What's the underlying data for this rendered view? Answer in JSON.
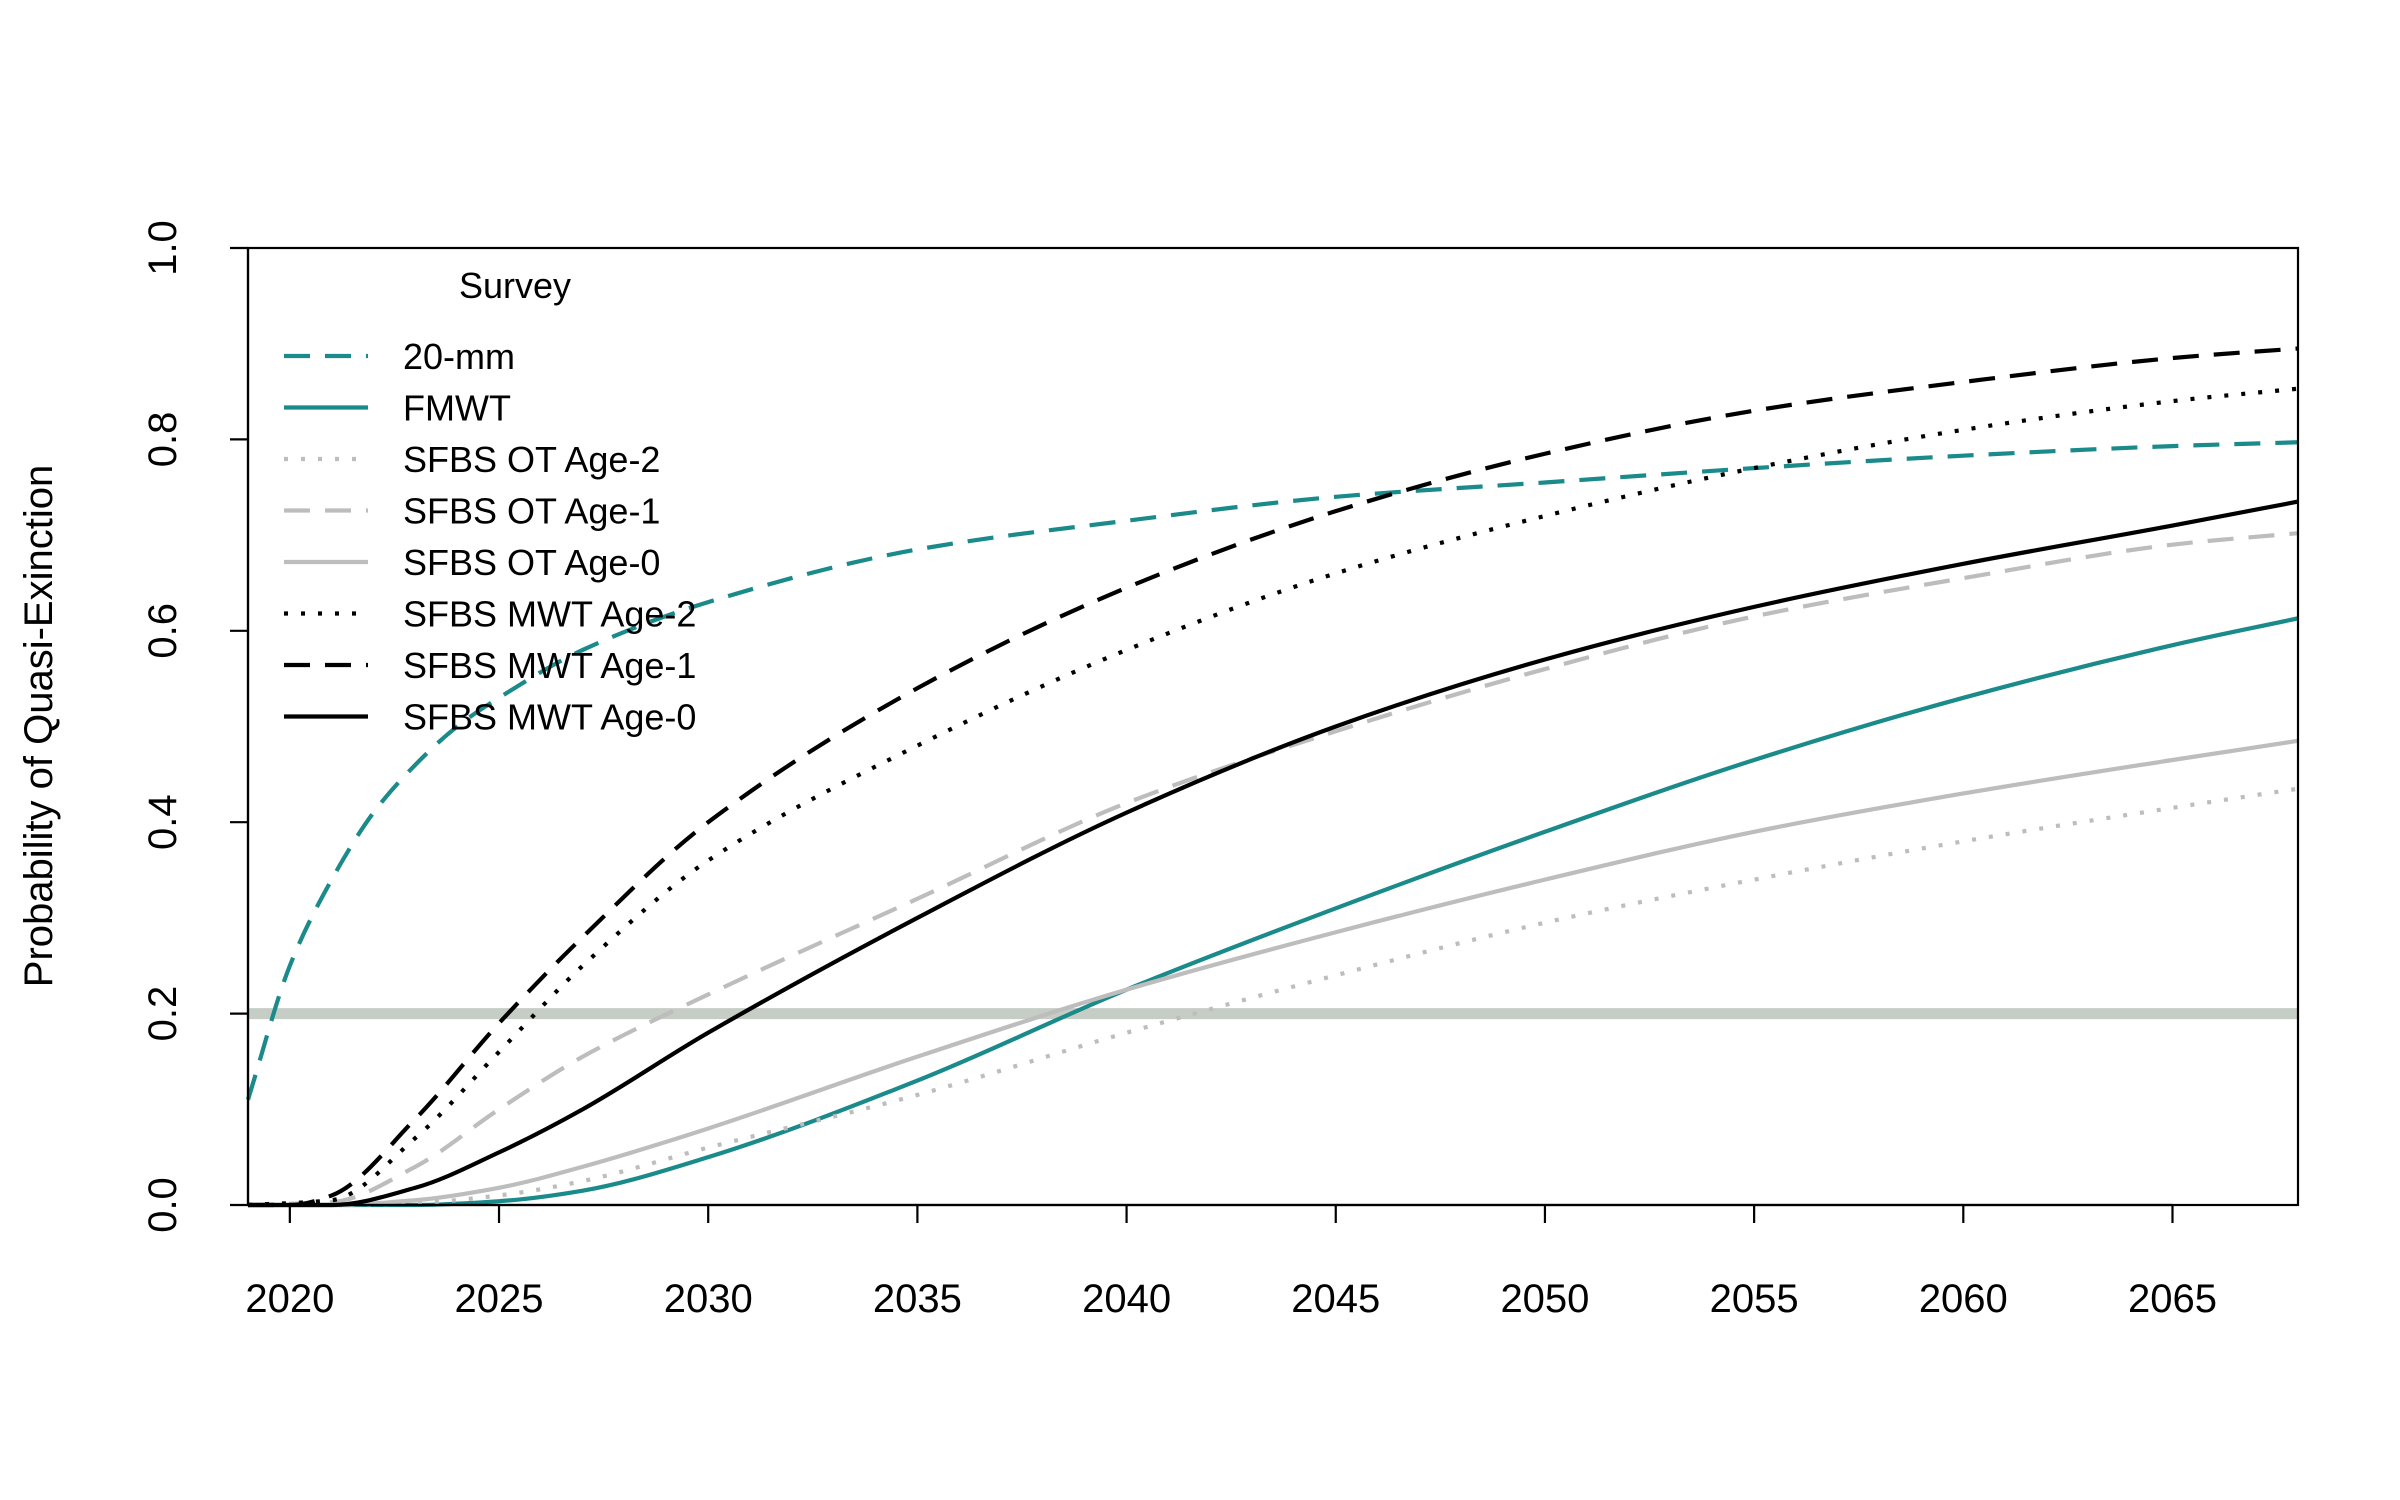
{
  "chart_data": {
    "type": "line",
    "title": "",
    "xlabel": "",
    "ylabel": "Probability of Quasi-Exinction",
    "xlim": [
      2019,
      2068
    ],
    "ylim": [
      0,
      1
    ],
    "x_ticks": [
      2020,
      2025,
      2030,
      2035,
      2040,
      2045,
      2050,
      2055,
      2060,
      2065
    ],
    "y_ticks": [
      "0.0",
      "0.2",
      "0.4",
      "0.6",
      "0.8",
      "1.0"
    ],
    "grid": false,
    "reference_line": {
      "y": 0.2,
      "color": "#c5cdc5"
    },
    "legend": {
      "title": "Survey",
      "placement": "top-left"
    },
    "series": [
      {
        "name": "20-mm",
        "color": "#1b8a8a",
        "style": "dashed",
        "x": [
          2019,
          2020,
          2021,
          2022,
          2023,
          2024,
          2025,
          2027,
          2030,
          2035,
          2040,
          2045,
          2050,
          2055,
          2060,
          2065,
          2068
        ],
        "y": [
          0.11,
          0.25,
          0.34,
          0.41,
          0.46,
          0.5,
          0.53,
          0.58,
          0.63,
          0.685,
          0.715,
          0.74,
          0.755,
          0.77,
          0.783,
          0.793,
          0.797
        ]
      },
      {
        "name": "FMWT",
        "color": "#1b8a8a",
        "style": "solid",
        "x": [
          2019,
          2021,
          2023,
          2025,
          2027,
          2030,
          2035,
          2040,
          2045,
          2050,
          2055,
          2060,
          2065,
          2068
        ],
        "y": [
          0,
          0,
          0,
          0.004,
          0.015,
          0.05,
          0.13,
          0.225,
          0.31,
          0.39,
          0.465,
          0.53,
          0.585,
          0.613
        ]
      },
      {
        "name": "SFBS OT Age-2",
        "color": "#bdbdbd",
        "style": "dotted",
        "x": [
          2019,
          2021,
          2023,
          2025,
          2027,
          2030,
          2035,
          2040,
          2045,
          2050,
          2055,
          2060,
          2065,
          2068
        ],
        "y": [
          0,
          0,
          0.002,
          0.01,
          0.025,
          0.06,
          0.115,
          0.18,
          0.24,
          0.295,
          0.34,
          0.38,
          0.415,
          0.435
        ]
      },
      {
        "name": "SFBS OT Age-1",
        "color": "#bdbdbd",
        "style": "dashed",
        "x": [
          2019,
          2021,
          2023,
          2025,
          2027,
          2030,
          2035,
          2040,
          2045,
          2050,
          2055,
          2060,
          2065,
          2068
        ],
        "y": [
          0,
          0.003,
          0.04,
          0.1,
          0.155,
          0.22,
          0.32,
          0.42,
          0.495,
          0.56,
          0.615,
          0.655,
          0.69,
          0.702
        ]
      },
      {
        "name": "SFBS OT Age-0",
        "color": "#bdbdbd",
        "style": "solid",
        "x": [
          2019,
          2021,
          2023,
          2025,
          2027,
          2030,
          2035,
          2040,
          2045,
          2050,
          2055,
          2060,
          2065,
          2068
        ],
        "y": [
          0,
          0,
          0.005,
          0.018,
          0.04,
          0.08,
          0.155,
          0.225,
          0.285,
          0.34,
          0.39,
          0.43,
          0.465,
          0.485
        ]
      },
      {
        "name": "SFBS MWT Age-2",
        "color": "#000000",
        "style": "dotted",
        "x": [
          2019,
          2021,
          2023,
          2025,
          2027,
          2030,
          2035,
          2040,
          2045,
          2050,
          2055,
          2060,
          2065,
          2068
        ],
        "y": [
          0,
          0.005,
          0.07,
          0.16,
          0.25,
          0.36,
          0.48,
          0.58,
          0.66,
          0.72,
          0.77,
          0.81,
          0.84,
          0.853
        ]
      },
      {
        "name": "SFBS MWT Age-1",
        "color": "#000000",
        "style": "dashed",
        "x": [
          2019,
          2020,
          2021,
          2023,
          2025,
          2027,
          2030,
          2035,
          2040,
          2045,
          2050,
          2055,
          2060,
          2065,
          2068
        ],
        "y": [
          0,
          0,
          0.01,
          0.09,
          0.19,
          0.28,
          0.4,
          0.54,
          0.645,
          0.725,
          0.785,
          0.83,
          0.86,
          0.885,
          0.895
        ]
      },
      {
        "name": "SFBS MWT Age-0",
        "color": "#000000",
        "style": "solid",
        "x": [
          2019,
          2021,
          2023,
          2025,
          2027,
          2030,
          2035,
          2040,
          2045,
          2050,
          2055,
          2060,
          2065,
          2068
        ],
        "y": [
          0,
          0,
          0.018,
          0.055,
          0.1,
          0.18,
          0.3,
          0.41,
          0.5,
          0.57,
          0.625,
          0.67,
          0.71,
          0.735
        ]
      }
    ]
  }
}
